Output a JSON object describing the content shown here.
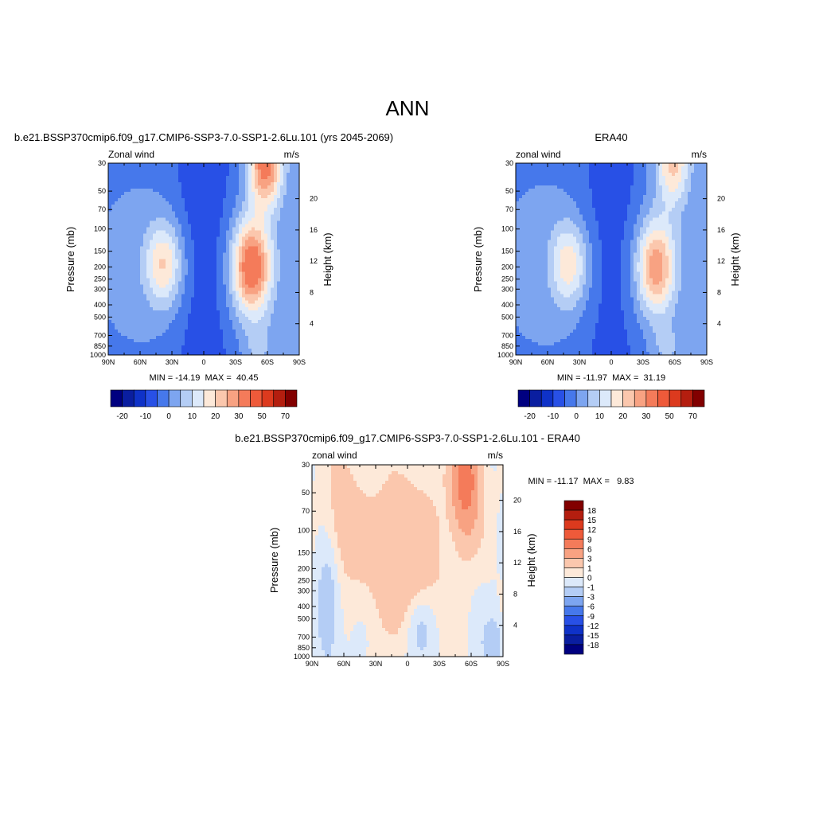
{
  "figure": {
    "title": "ANN"
  },
  "chart_data": [
    {
      "type": "heatmap",
      "panel_title": "b.e21.BSSP370cmip6.f09_g17.CMIP6-SSP3-7.0-SSP1-2.6Lu.101 (yrs 2045-2069)",
      "left_label": "Zonal wind",
      "right_label": "m/s",
      "ylabel": "Pressure (mb)",
      "y2label": "Height (km)",
      "x_ticks": [
        "90N",
        "60N",
        "30N",
        "0",
        "30S",
        "60S",
        "90S"
      ],
      "x_values": [
        90,
        60,
        30,
        0,
        -30,
        -60,
        -90
      ],
      "y_ticks": [
        "30",
        "50",
        "70",
        "100",
        "150",
        "200",
        "250",
        "300",
        "400",
        "500",
        "700",
        "850",
        "1000"
      ],
      "y_values": [
        30,
        50,
        70,
        100,
        150,
        200,
        250,
        300,
        400,
        500,
        700,
        850,
        1000
      ],
      "height_ticks": [
        "20",
        "16",
        "12",
        "8",
        "4"
      ],
      "height_values": [
        20,
        16,
        12,
        8,
        4
      ],
      "stats": "MIN = -14.19  MAX =  40.45",
      "min": -14.19,
      "max": 40.45,
      "levels": [
        -25,
        -20,
        -15,
        -10,
        -5,
        0,
        5,
        10,
        15,
        20,
        25,
        30,
        40,
        50,
        60,
        70
      ],
      "colorbar_labels": [
        "-20",
        "-10",
        "0",
        "10",
        "20",
        "30",
        "50",
        "70"
      ],
      "colorbar_label_levels": [
        -20,
        -10,
        0,
        10,
        20,
        30,
        50,
        70
      ],
      "colorbar_orientation": "horizontal",
      "features": {
        "easterly_mid": -10,
        "nh_jet": {
          "lat": 38,
          "p": 190,
          "speed": 22
        },
        "sh_jet": {
          "lat": -45,
          "p": 200,
          "speed": 38
        },
        "strat_jet": {
          "lat": -58,
          "p": 30,
          "speed": 35
        }
      }
    },
    {
      "type": "heatmap",
      "panel_title": "ERA40",
      "left_label": "zonal wind",
      "right_label": "m/s",
      "ylabel": "Pressure (mb)",
      "y2label": "Height (km)",
      "x_ticks": [
        "90N",
        "60N",
        "30N",
        "0",
        "30S",
        "60S",
        "90S"
      ],
      "x_values": [
        90,
        60,
        30,
        0,
        -30,
        -60,
        -90
      ],
      "y_ticks": [
        "30",
        "50",
        "70",
        "100",
        "150",
        "200",
        "250",
        "300",
        "400",
        "500",
        "700",
        "850",
        "1000"
      ],
      "y_values": [
        30,
        50,
        70,
        100,
        150,
        200,
        250,
        300,
        400,
        500,
        700,
        850,
        1000
      ],
      "height_ticks": [
        "20",
        "16",
        "12",
        "8",
        "4"
      ],
      "height_values": [
        20,
        16,
        12,
        8,
        4
      ],
      "stats": "MIN = -11.97  MAX =  31.19",
      "min": -11.97,
      "max": 31.19,
      "levels": [
        -25,
        -20,
        -15,
        -10,
        -5,
        0,
        5,
        10,
        15,
        20,
        25,
        30,
        40,
        50,
        60,
        70
      ],
      "colorbar_labels": [
        "-20",
        "-10",
        "0",
        "10",
        "20",
        "30",
        "50",
        "70"
      ],
      "colorbar_label_levels": [
        -20,
        -10,
        0,
        10,
        20,
        30,
        50,
        70
      ],
      "colorbar_orientation": "horizontal",
      "features": {
        "easterly_mid": -9,
        "nh_jet": {
          "lat": 40,
          "p": 190,
          "speed": 20
        },
        "sh_jet": {
          "lat": -42,
          "p": 200,
          "speed": 30
        },
        "strat_jet": {
          "lat": -58,
          "p": 30,
          "speed": 22
        }
      }
    },
    {
      "type": "heatmap",
      "panel_title": "b.e21.BSSP370cmip6.f09_g17.CMIP6-SSP3-7.0-SSP1-2.6Lu.101 - ERA40",
      "left_label": "zonal wind",
      "right_label": "m/s",
      "ylabel": "Pressure (mb)",
      "y2label": "Height (km)",
      "x_ticks": [
        "90N",
        "60N",
        "30N",
        "0",
        "30S",
        "60S",
        "90S"
      ],
      "x_values": [
        90,
        60,
        30,
        0,
        -30,
        -60,
        -90
      ],
      "y_ticks": [
        "30",
        "50",
        "70",
        "100",
        "150",
        "200",
        "250",
        "300",
        "400",
        "500",
        "700",
        "850",
        "1000"
      ],
      "y_values": [
        30,
        50,
        70,
        100,
        150,
        200,
        250,
        300,
        400,
        500,
        700,
        850,
        1000
      ],
      "height_ticks": [
        "20",
        "16",
        "12",
        "8",
        "4"
      ],
      "height_values": [
        20,
        16,
        12,
        8,
        4
      ],
      "stats": "MIN = -11.17  MAX =   9.83",
      "min": -11.17,
      "max": 9.83,
      "levels": [
        -21,
        -18,
        -15,
        -12,
        -9,
        -6,
        -3,
        -1,
        0,
        1,
        3,
        6,
        9,
        12,
        15,
        18,
        21
      ],
      "colorbar_labels": [
        "18",
        "15",
        "12",
        "9",
        "6",
        "3",
        "1",
        "0",
        "-1",
        "-3",
        "-6",
        "-9",
        "-12",
        "-15",
        "-18"
      ],
      "colorbar_label_levels": [
        18,
        15,
        12,
        9,
        6,
        3,
        1,
        0,
        -1,
        -3,
        -6,
        -9,
        -12,
        -15,
        -18
      ],
      "colorbar_orientation": "vertical",
      "features": {
        "sh_strat_positive": {
          "lat": -55,
          "p": 40,
          "diff": 8
        },
        "tropical_positive": {
          "lat": 5,
          "p": 150,
          "diff": 3
        },
        "nh_midlat_positive": {
          "lat": 60,
          "p": 80,
          "diff": 2
        }
      }
    }
  ],
  "colors": {
    "contour_levels": [
      "#000080",
      "#0a1ea0",
      "#0f32c8",
      "#2850e6",
      "#4678eb",
      "#7da5f0",
      "#b4cdf5",
      "#dce9fa",
      "#fde9d9",
      "#fbc7ad",
      "#f8a282",
      "#f47b5a",
      "#ee5a3a",
      "#dc3a1e",
      "#b41e0f",
      "#820000"
    ]
  }
}
